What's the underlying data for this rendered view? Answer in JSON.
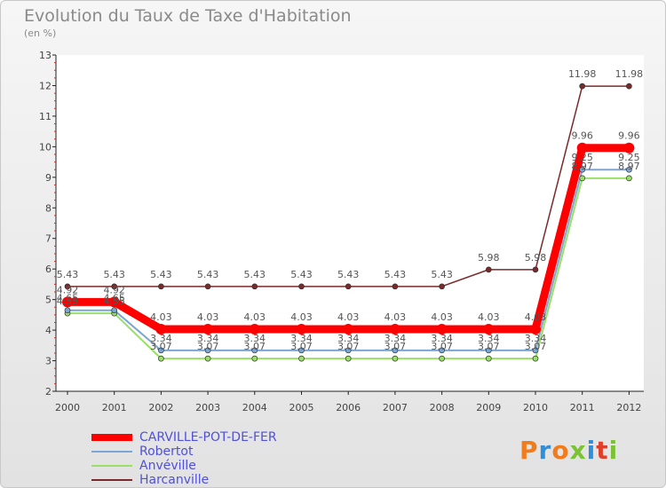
{
  "chart_data": {
    "type": "line",
    "title": "Evolution du Taux de Taxe d'Habitation",
    "subtitle": "(en %)",
    "xlabel": "",
    "ylabel": "",
    "categories": [
      "2000",
      "2001",
      "2002",
      "2003",
      "2004",
      "2005",
      "2006",
      "2007",
      "2008",
      "2009",
      "2010",
      "2011",
      "2012"
    ],
    "ylim": [
      2,
      13
    ],
    "yticks": [
      "2",
      "3",
      "4",
      "5",
      "6",
      "7",
      "8",
      "9",
      "10",
      "11",
      "12",
      "13"
    ],
    "grid": false,
    "legend_position": "bottom-left",
    "series": [
      {
        "name": "CARVILLE-POT-DE-FER",
        "color": "#ff0000",
        "values": [
          4.92,
          4.92,
          4.03,
          4.03,
          4.03,
          4.03,
          4.03,
          4.03,
          4.03,
          4.03,
          4.03,
          9.96,
          9.96
        ],
        "labels": [
          "4.92",
          "4.92",
          "4.03",
          "4.03",
          "4.03",
          "4.03",
          "4.03",
          "4.03",
          "4.03",
          "4.03",
          "4.03",
          "9.96",
          "9.96"
        ]
      },
      {
        "name": "Robertot",
        "color": "#7aa6d6",
        "values": [
          4.65,
          4.65,
          3.34,
          3.34,
          3.34,
          3.34,
          3.34,
          3.34,
          3.34,
          3.34,
          3.34,
          9.25,
          9.25
        ],
        "labels": [
          "4.65",
          "4.65",
          "3.34",
          "3.34",
          "3.34",
          "3.34",
          "3.34",
          "3.34",
          "3.34",
          "3.34",
          "3.34",
          "9.25",
          "9.25"
        ]
      },
      {
        "name": "Anvéville",
        "color": "#99e066",
        "values": [
          4.55,
          4.55,
          3.07,
          3.07,
          3.07,
          3.07,
          3.07,
          3.07,
          3.07,
          3.07,
          3.07,
          8.97,
          8.97
        ],
        "labels": [
          "4.55",
          "4.55",
          "3.07",
          "3.07",
          "3.07",
          "3.07",
          "3.07",
          "3.07",
          "3.07",
          "3.07",
          "3.07",
          "8.97",
          "8.97"
        ]
      },
      {
        "name": "Harcanville",
        "color": "#7a2a2a",
        "values": [
          5.43,
          5.43,
          5.43,
          5.43,
          5.43,
          5.43,
          5.43,
          5.43,
          5.43,
          5.98,
          5.98,
          11.98,
          11.98
        ],
        "labels": [
          "5.43",
          "5.43",
          "5.43",
          "5.43",
          "5.43",
          "5.43",
          "5.43",
          "5.43",
          "5.43",
          "5.98",
          "5.98",
          "11.98",
          "11.98"
        ]
      }
    ]
  },
  "logo": {
    "text": "Proxiti",
    "colors": [
      "#f07c1e",
      "#2f8fd8",
      "#f07c1e",
      "#7cc234",
      "#2f8fd8",
      "#e0402a",
      "#7cc234"
    ]
  }
}
